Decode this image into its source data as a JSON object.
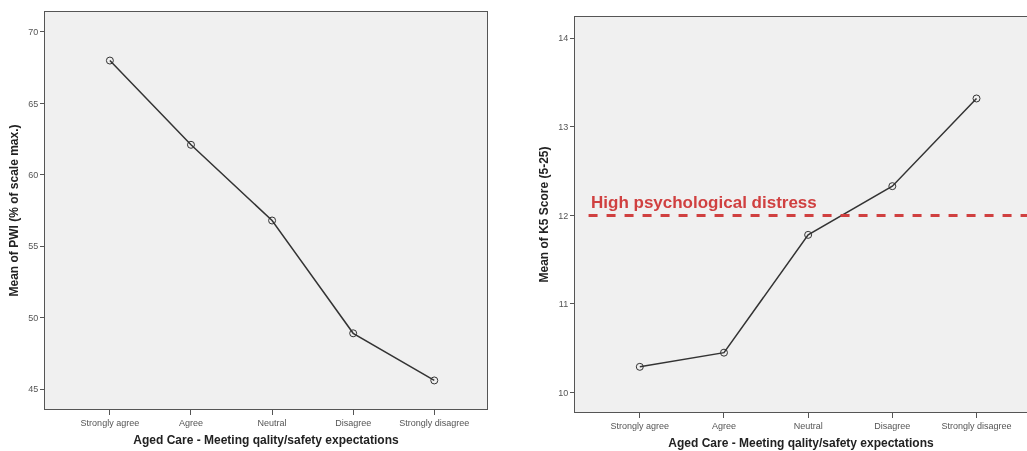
{
  "chart_data": [
    {
      "type": "line",
      "xlabel": "Aged Care - Meeting qality/safety expectations",
      "ylabel": "Mean of PWI (% of scale max.)",
      "categories": [
        "Strongly agree",
        "Agree",
        "Neutral",
        "Disagree",
        "Strongly disagree"
      ],
      "values": [
        68.0,
        62.1,
        56.8,
        48.9,
        45.6
      ],
      "color": "#333333",
      "marker": "circle",
      "ylim": [
        43.6,
        71.4
      ],
      "yticks": [
        45,
        50,
        55,
        60,
        65,
        70
      ],
      "grid": false
    },
    {
      "type": "line",
      "xlabel": "Aged Care - Meeting qality/safety expectations",
      "ylabel": "Mean of K5 Score (5-25)",
      "categories": [
        "Strongly agree",
        "Agree",
        "Neutral",
        "Disagree",
        "Strongly disagree"
      ],
      "values": [
        10.29,
        10.45,
        11.78,
        12.33,
        13.32
      ],
      "color": "#333333",
      "marker": "circle",
      "ylim": [
        9.78,
        14.24
      ],
      "yticks": [
        10,
        11,
        12,
        13,
        14
      ],
      "grid": false,
      "ref_lines": [
        {
          "axis": "y",
          "value": 12,
          "label": "High psychological distress",
          "color": "#d04040",
          "line_style": "dashed"
        }
      ]
    }
  ]
}
